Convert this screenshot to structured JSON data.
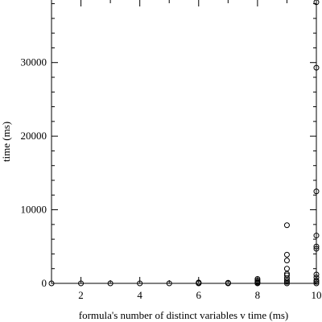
{
  "chart_data": {
    "type": "scatter",
    "xlabel": "formula's number of distinct variables v time (ms)",
    "ylabel": "time (ms)",
    "xlim": [
      1,
      10
    ],
    "ylim": [
      0,
      38500
    ],
    "grid": false,
    "x_ticks": [
      2,
      4,
      6,
      8,
      10
    ],
    "y_ticks": [
      0,
      10000,
      20000,
      30000
    ],
    "x_tick_labels": [
      "2",
      "4",
      "6",
      "8",
      "10"
    ],
    "y_tick_labels": [
      "0",
      "10000",
      "20000",
      "30000"
    ],
    "points": [
      {
        "x": 1,
        "y": 0
      },
      {
        "x": 2,
        "y": 0
      },
      {
        "x": 3,
        "y": 0
      },
      {
        "x": 4,
        "y": 0
      },
      {
        "x": 5,
        "y": 0
      },
      {
        "x": 6,
        "y": 0
      },
      {
        "x": 6,
        "y": 50
      },
      {
        "x": 6,
        "y": 120
      },
      {
        "x": 7,
        "y": 0
      },
      {
        "x": 7,
        "y": 80
      },
      {
        "x": 8,
        "y": 0
      },
      {
        "x": 8,
        "y": 100
      },
      {
        "x": 8,
        "y": 220
      },
      {
        "x": 8,
        "y": 400
      },
      {
        "x": 8,
        "y": 600
      },
      {
        "x": 9,
        "y": 0
      },
      {
        "x": 9,
        "y": 200
      },
      {
        "x": 9,
        "y": 400
      },
      {
        "x": 9,
        "y": 700
      },
      {
        "x": 9,
        "y": 1100
      },
      {
        "x": 9,
        "y": 1300
      },
      {
        "x": 9,
        "y": 2000
      },
      {
        "x": 9,
        "y": 3100
      },
      {
        "x": 9,
        "y": 3900
      },
      {
        "x": 9,
        "y": 7900
      },
      {
        "x": 10,
        "y": 0
      },
      {
        "x": 10,
        "y": 200
      },
      {
        "x": 10,
        "y": 400
      },
      {
        "x": 10,
        "y": 800
      },
      {
        "x": 10,
        "y": 1200
      },
      {
        "x": 10,
        "y": 4700
      },
      {
        "x": 10,
        "y": 5000
      },
      {
        "x": 10,
        "y": 6500
      },
      {
        "x": 10,
        "y": 12500
      },
      {
        "x": 10,
        "y": 29300
      },
      {
        "x": 10,
        "y": 38200
      }
    ]
  }
}
